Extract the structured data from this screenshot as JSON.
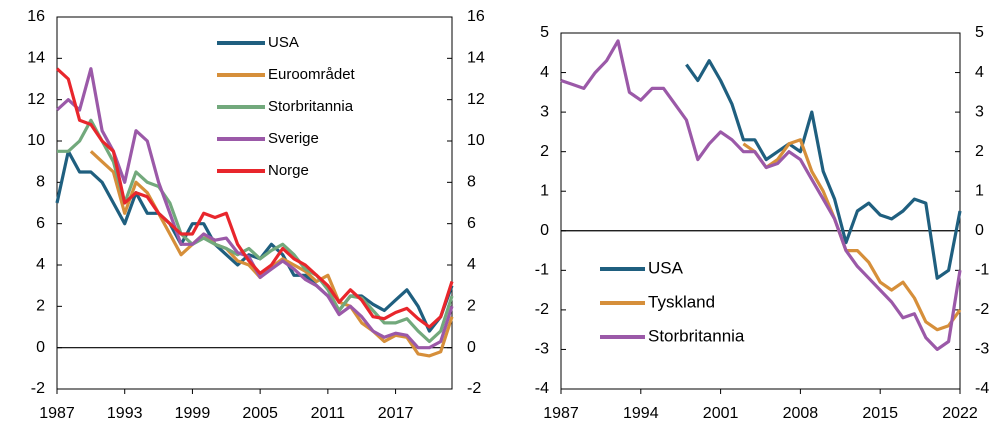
{
  "chart_data": [
    {
      "type": "line",
      "x": [
        1987,
        1988,
        1989,
        1990,
        1991,
        1992,
        1993,
        1994,
        1995,
        1996,
        1997,
        1998,
        1999,
        2000,
        2001,
        2002,
        2003,
        2004,
        2005,
        2006,
        2007,
        2008,
        2009,
        2010,
        2011,
        2012,
        2013,
        2014,
        2015,
        2016,
        2017,
        2018,
        2019,
        2020,
        2021,
        2022
      ],
      "xlim": [
        1987,
        2022
      ],
      "xticks": [
        1987,
        1993,
        1999,
        2005,
        2011,
        2017
      ],
      "ylim": [
        -2,
        16
      ],
      "yticks": [
        -2,
        0,
        2,
        4,
        6,
        8,
        10,
        12,
        14,
        16
      ],
      "y2lim": [
        -2,
        16
      ],
      "y2ticks": [
        -2,
        0,
        2,
        4,
        6,
        8,
        10,
        12,
        14,
        16
      ],
      "legend": "top-right",
      "series": [
        {
          "name": "USA",
          "color": "#1f5f7f",
          "values": [
            7,
            9.5,
            8.5,
            8.5,
            8,
            7,
            6,
            7.5,
            6.5,
            6.5,
            6,
            5,
            6,
            6,
            5,
            4.5,
            4,
            4.5,
            4.3,
            5,
            4.5,
            3.5,
            3.5,
            3,
            2.5,
            1.8,
            2.5,
            2.5,
            2.1,
            1.8,
            2.3,
            2.8,
            2,
            0.8,
            1.5,
            3
          ]
        },
        {
          "name": "Euroområdet",
          "color": "#d68f3a",
          "values": [
            null,
            null,
            null,
            9.5,
            9,
            8.5,
            6.5,
            8,
            7.5,
            6.5,
            5.5,
            4.5,
            5,
            5.5,
            5,
            4.8,
            4.2,
            4,
            3.4,
            3.9,
            4.3,
            4,
            3.7,
            3.2,
            3.5,
            2.2,
            2,
            1.2,
            0.8,
            0.3,
            0.6,
            0.5,
            -0.3,
            -0.4,
            -0.2,
            1.5
          ]
        },
        {
          "name": "Storbritannia",
          "color": "#72a97c",
          "values": [
            9.5,
            9.5,
            10,
            11,
            10,
            9,
            7,
            8.5,
            8,
            7.8,
            7,
            5.5,
            5,
            5.3,
            5,
            4.8,
            4.5,
            4.8,
            4.3,
            4.7,
            5,
            4.5,
            3.8,
            3.5,
            2.8,
            1.8,
            2.5,
            2.4,
            1.8,
            1.2,
            1.2,
            1.4,
            0.8,
            0.3,
            0.8,
            2.5
          ]
        },
        {
          "name": "Sverige",
          "color": "#9b59a8",
          "values": [
            11.5,
            12,
            11.5,
            13.5,
            10.5,
            9.5,
            8,
            10.5,
            10,
            8,
            6.5,
            5,
            5,
            5.5,
            5.2,
            5.3,
            4.6,
            4.4,
            3.4,
            3.8,
            4.2,
            3.8,
            3.3,
            3,
            2.5,
            1.6,
            2,
            1.5,
            0.8,
            0.5,
            0.7,
            0.6,
            0,
            0,
            0.3,
            2
          ]
        },
        {
          "name": "Norge",
          "color": "#e8262c",
          "values": [
            13.5,
            13,
            11,
            10.8,
            10,
            9.5,
            7,
            7.5,
            7.3,
            6.5,
            6,
            5.5,
            5.5,
            6.5,
            6.3,
            6.5,
            5,
            4.2,
            3.6,
            4,
            4.8,
            4.3,
            4,
            3.5,
            3,
            2.2,
            2.8,
            2.3,
            1.5,
            1.4,
            1.7,
            1.9,
            1.4,
            1,
            1.5,
            3.2
          ]
        }
      ]
    },
    {
      "type": "line",
      "x": [
        1987,
        1988,
        1989,
        1990,
        1991,
        1992,
        1993,
        1994,
        1995,
        1996,
        1997,
        1998,
        1999,
        2000,
        2001,
        2002,
        2003,
        2004,
        2005,
        2006,
        2007,
        2008,
        2009,
        2010,
        2011,
        2012,
        2013,
        2014,
        2015,
        2016,
        2017,
        2018,
        2019,
        2020,
        2021,
        2022
      ],
      "xlim": [
        1987,
        2022
      ],
      "xticks": [
        1987,
        1994,
        2001,
        2008,
        2015,
        2022
      ],
      "ylim": [
        -4,
        5
      ],
      "yticks": [
        -4,
        -3,
        -2,
        -1,
        0,
        1,
        2,
        3,
        4,
        5
      ],
      "y2lim": [
        -4,
        5
      ],
      "y2ticks": [
        -4,
        -3,
        -2,
        -1,
        0,
        1,
        2,
        3,
        4,
        5
      ],
      "legend": "bottom-left",
      "series": [
        {
          "name": "USA",
          "color": "#1f5f7f",
          "values": [
            null,
            null,
            null,
            null,
            null,
            null,
            null,
            null,
            null,
            null,
            null,
            4.2,
            3.8,
            4.3,
            3.8,
            3.2,
            2.3,
            2.3,
            1.8,
            2,
            2.2,
            2,
            3,
            1.5,
            0.8,
            -0.3,
            0.5,
            0.7,
            0.4,
            0.3,
            0.5,
            0.8,
            0.7,
            -1.2,
            -1,
            0.5
          ]
        },
        {
          "name": "Tyskland",
          "color": "#d68f3a",
          "values": [
            null,
            null,
            null,
            null,
            null,
            null,
            null,
            null,
            null,
            null,
            null,
            null,
            null,
            null,
            null,
            null,
            2.2,
            2,
            1.6,
            1.8,
            2.2,
            2.3,
            1.5,
            1,
            0.3,
            -0.5,
            -0.5,
            -0.8,
            -1.3,
            -1.5,
            -1.3,
            -1.7,
            -2.3,
            -2.5,
            -2.4,
            -2
          ]
        },
        {
          "name": "Storbritannia",
          "color": "#9b59a8",
          "values": [
            3.8,
            3.7,
            3.6,
            4,
            4.3,
            4.8,
            3.5,
            3.3,
            3.6,
            3.6,
            3.2,
            2.8,
            1.8,
            2.2,
            2.5,
            2.3,
            2,
            2,
            1.6,
            1.7,
            2,
            1.8,
            1.3,
            0.8,
            0.3,
            -0.5,
            -0.9,
            -1.2,
            -1.5,
            -1.8,
            -2.2,
            -2.1,
            -2.7,
            -3,
            -2.8,
            -1
          ]
        }
      ]
    }
  ]
}
